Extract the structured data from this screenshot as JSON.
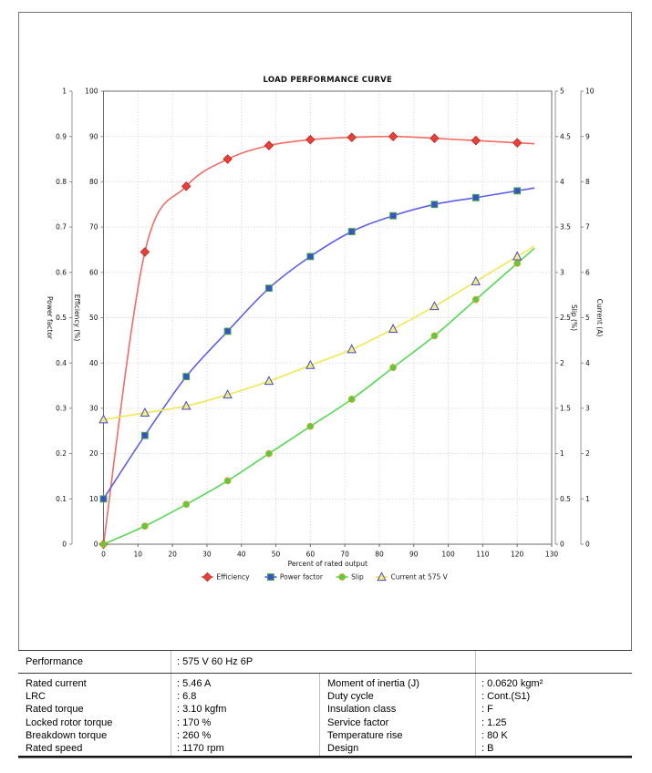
{
  "page": {
    "background": "#ffffff"
  },
  "chart_data": {
    "type": "line",
    "title": "LOAD PERFORMANCE CURVE",
    "x_label": "Percent of rated output",
    "x_ticks_min": 0,
    "x_ticks_max": 130,
    "x_tick_step": 10,
    "grid": "dotted",
    "legend_position": "bottom",
    "x": [
      0,
      12,
      24,
      36,
      48,
      60,
      72,
      84,
      96,
      108,
      120
    ],
    "axes": [
      {
        "id": "power_factor",
        "side": "left",
        "label": "Power factor",
        "min": 0,
        "max": 1,
        "step": 0.1
      },
      {
        "id": "efficiency",
        "side": "left",
        "label": "Efficiency (%)",
        "min": 0,
        "max": 100,
        "step": 10
      },
      {
        "id": "slip",
        "side": "right",
        "label": "Slip (%)",
        "min": 0,
        "max": 5,
        "step": 0.5
      },
      {
        "id": "current",
        "side": "right",
        "label": "Current (A)",
        "min": 0,
        "max": 10,
        "step": 1
      }
    ],
    "series": [
      {
        "name": "Efficiency",
        "axis": "efficiency",
        "marker": "diamond",
        "line_color": "#f26b64",
        "fill_color": "#e6413a",
        "edge_color": "#c53028",
        "values": [
          0,
          64.5,
          79,
          85,
          88,
          89.3,
          89.8,
          90,
          89.6,
          89.1,
          88.6
        ]
      },
      {
        "name": "Power factor",
        "axis": "power_factor",
        "marker": "square",
        "line_color": "#5f5fe6",
        "fill_color": "#3c50c8",
        "edge_color": "#3faa46",
        "values": [
          0.1,
          0.24,
          0.37,
          0.47,
          0.565,
          0.635,
          0.69,
          0.725,
          0.75,
          0.765,
          0.78
        ]
      },
      {
        "name": "Slip",
        "axis": "slip",
        "marker": "circle",
        "line_color": "#57d857",
        "fill_color": "#55cc44",
        "edge_color": "#d4a62e",
        "values": [
          0,
          0.2,
          0.44,
          0.7,
          1.0,
          1.3,
          1.6,
          1.95,
          2.3,
          2.7,
          3.1
        ]
      },
      {
        "name": "Current at 575 V",
        "axis": "current",
        "marker": "triangle",
        "line_color": "#efe852",
        "fill_color": "#f2ee86",
        "edge_color": "#4a4acc",
        "values": [
          2.75,
          2.9,
          3.05,
          3.3,
          3.6,
          3.95,
          4.3,
          4.75,
          5.25,
          5.8,
          6.35
        ]
      }
    ]
  },
  "table": {
    "performance": {
      "label": "Performance",
      "value": ": 575 V 60 Hz 6P"
    },
    "left_rows": [
      {
        "label": "Rated current",
        "value": ": 5.46 A"
      },
      {
        "label": "LRC",
        "value": ": 6.8"
      },
      {
        "label": "Rated torque",
        "value": ": 3.10 kgfm"
      },
      {
        "label": "Locked rotor torque",
        "value": ": 170 %"
      },
      {
        "label": "Breakdown torque",
        "value": ": 260 %"
      },
      {
        "label": "Rated speed",
        "value": ": 1170 rpm"
      }
    ],
    "right_rows": [
      {
        "label": "Moment of inertia (J)",
        "value": ": 0.0620 kgm²"
      },
      {
        "label": "Duty cycle",
        "value": ": Cont.(S1)"
      },
      {
        "label": "Insulation class",
        "value": ": F"
      },
      {
        "label": "Service factor",
        "value": ": 1.25"
      },
      {
        "label": "Temperature rise",
        "value": ": 80 K"
      },
      {
        "label": "Design",
        "value": ": B"
      }
    ]
  }
}
